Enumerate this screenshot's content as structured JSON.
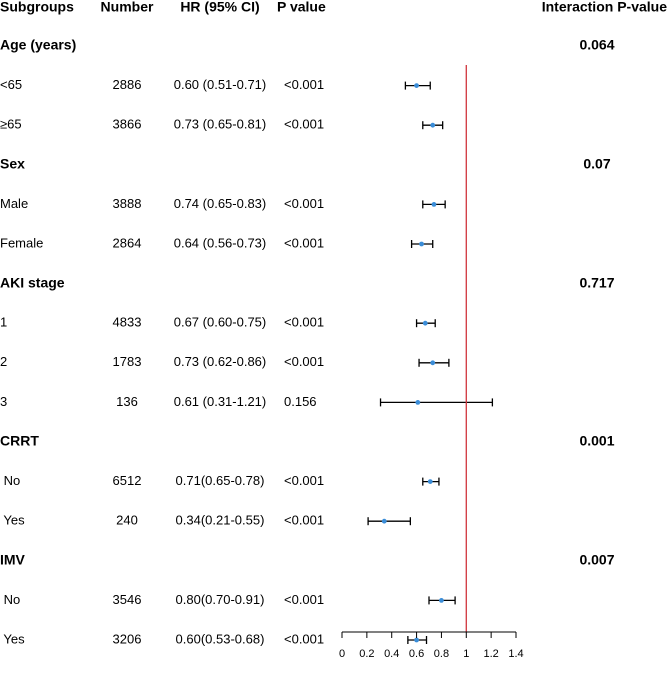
{
  "chart_data": {
    "type": "forest",
    "columns": [
      "Subgroups",
      "Number",
      "HR (95% CI)",
      "P value",
      "Interaction P-value"
    ],
    "groups": [
      {
        "name": "Age (years)",
        "interaction_p": 0.064,
        "rows": [
          {
            "label": "<65",
            "number": 2886,
            "value": 0.6,
            "lower": 0.51,
            "upper": 0.71,
            "value_label": "0.60 (0.51-0.71)",
            "p_value": "<0.001"
          },
          {
            "label": "≥65",
            "number": 3866,
            "value": 0.73,
            "lower": 0.65,
            "upper": 0.81,
            "value_label": "0.73 (0.65-0.81)",
            "p_value": "<0.001"
          }
        ]
      },
      {
        "name": "Sex",
        "interaction_p": 0.07,
        "rows": [
          {
            "label": "Male",
            "number": 3888,
            "value": 0.74,
            "lower": 0.65,
            "upper": 0.83,
            "value_label": "0.74 (0.65-0.83)",
            "p_value": "<0.001"
          },
          {
            "label": "Female",
            "number": 2864,
            "value": 0.64,
            "lower": 0.56,
            "upper": 0.73,
            "value_label": "0.64 (0.56-0.73)",
            "p_value": "<0.001"
          }
        ]
      },
      {
        "name": "AKI stage",
        "interaction_p": 0.717,
        "rows": [
          {
            "label": "1",
            "number": 4833,
            "value": 0.67,
            "lower": 0.6,
            "upper": 0.75,
            "value_label": "0.67 (0.60-0.75)",
            "p_value": "<0.001"
          },
          {
            "label": "2",
            "number": 1783,
            "value": 0.73,
            "lower": 0.62,
            "upper": 0.86,
            "value_label": "0.73 (0.62-0.86)",
            "p_value": "<0.001"
          },
          {
            "label": "3",
            "number": 136,
            "value": 0.61,
            "lower": 0.31,
            "upper": 1.21,
            "value_label": "0.61 (0.31-1.21)",
            "p_value": "0.156"
          }
        ]
      },
      {
        "name": "CRRT",
        "interaction_p": 0.001,
        "rows": [
          {
            "label": " No",
            "number": 6512,
            "value": 0.71,
            "lower": 0.65,
            "upper": 0.78,
            "value_label": "0.71(0.65-0.78)",
            "p_value": "<0.001"
          },
          {
            "label": " Yes",
            "number": 240,
            "value": 0.34,
            "lower": 0.21,
            "upper": 0.55,
            "value_label": "0.34(0.21-0.55)",
            "p_value": "<0.001"
          }
        ]
      },
      {
        "name": "IMV",
        "interaction_p": 0.007,
        "rows": [
          {
            "label": " No",
            "number": 3546,
            "value": 0.8,
            "lower": 0.7,
            "upper": 0.91,
            "value_label": "0.80(0.70-0.91)",
            "p_value": "<0.001"
          },
          {
            "label": " Yes",
            "number": 3206,
            "value": 0.6,
            "lower": 0.53,
            "upper": 0.68,
            "value_label": "0.60(0.53-0.68)",
            "p_value": "<0.001"
          }
        ]
      }
    ],
    "xlim": [
      0,
      1.4
    ],
    "xticks": [
      0,
      0.2,
      0.4,
      0.6,
      0.8,
      1,
      1.2,
      1.4
    ],
    "reference_line": 1,
    "reference_color": "#d0343c",
    "point_color": "#3a8dd8",
    "ci_color": "#000000"
  }
}
